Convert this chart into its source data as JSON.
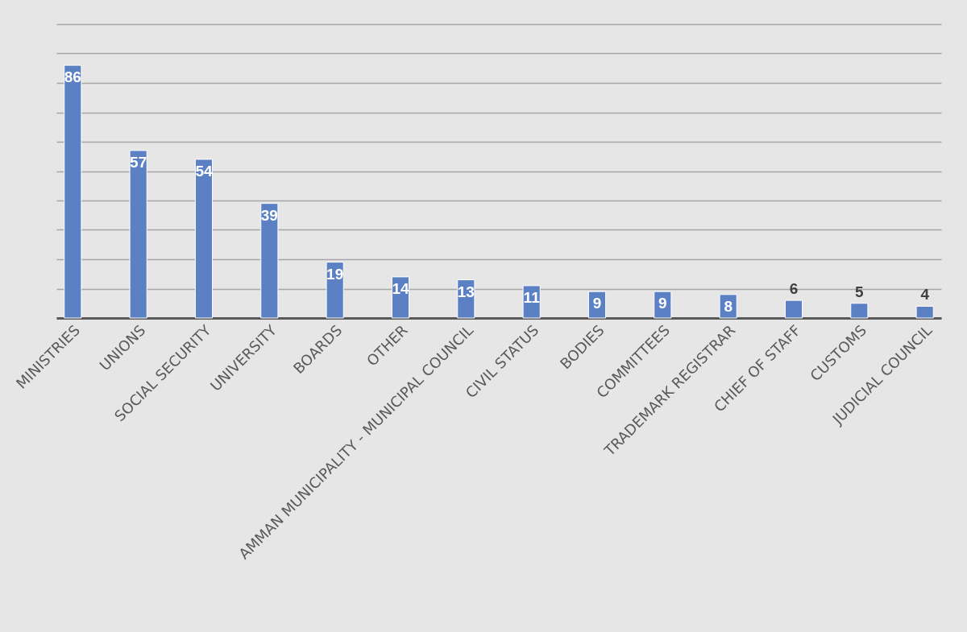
{
  "chart_data": {
    "type": "bar",
    "categories": [
      "MINISTRIES",
      "UNIONS",
      "SOCIAL SECURITY",
      "UNIVERSITY",
      "BOARDS",
      "OTHER",
      "AMMAN MUNICIPALITY - MUNICIPAL COUNCIL",
      "CIVIL STATUS",
      "BODIES",
      "COMMITTEES",
      "TRADEMARK REGISTRAR",
      "CHIEF OF STAFF",
      "CUSTOMS",
      "JUDICIAL COUNCIL"
    ],
    "values": [
      86,
      57,
      54,
      39,
      19,
      14,
      13,
      11,
      9,
      9,
      8,
      6,
      5,
      4
    ],
    "color": "#5b80c4",
    "ylim": [
      0,
      100
    ],
    "yticks": [
      {
        "value": 0,
        "label": null
      },
      {
        "value": 10,
        "label": null
      },
      {
        "value": 20,
        "label": null
      },
      {
        "value": 30,
        "label": null
      },
      {
        "value": 40,
        "label": null
      },
      {
        "value": 50,
        "label": null
      },
      {
        "value": 60,
        "label": null
      },
      {
        "value": 70,
        "label": null
      },
      {
        "value": 80,
        "label": null
      },
      {
        "value": 90,
        "label": null
      },
      {
        "value": 100,
        "label": null
      }
    ],
    "grid": "y",
    "tick_labels": "x",
    "data_labels": true
  }
}
